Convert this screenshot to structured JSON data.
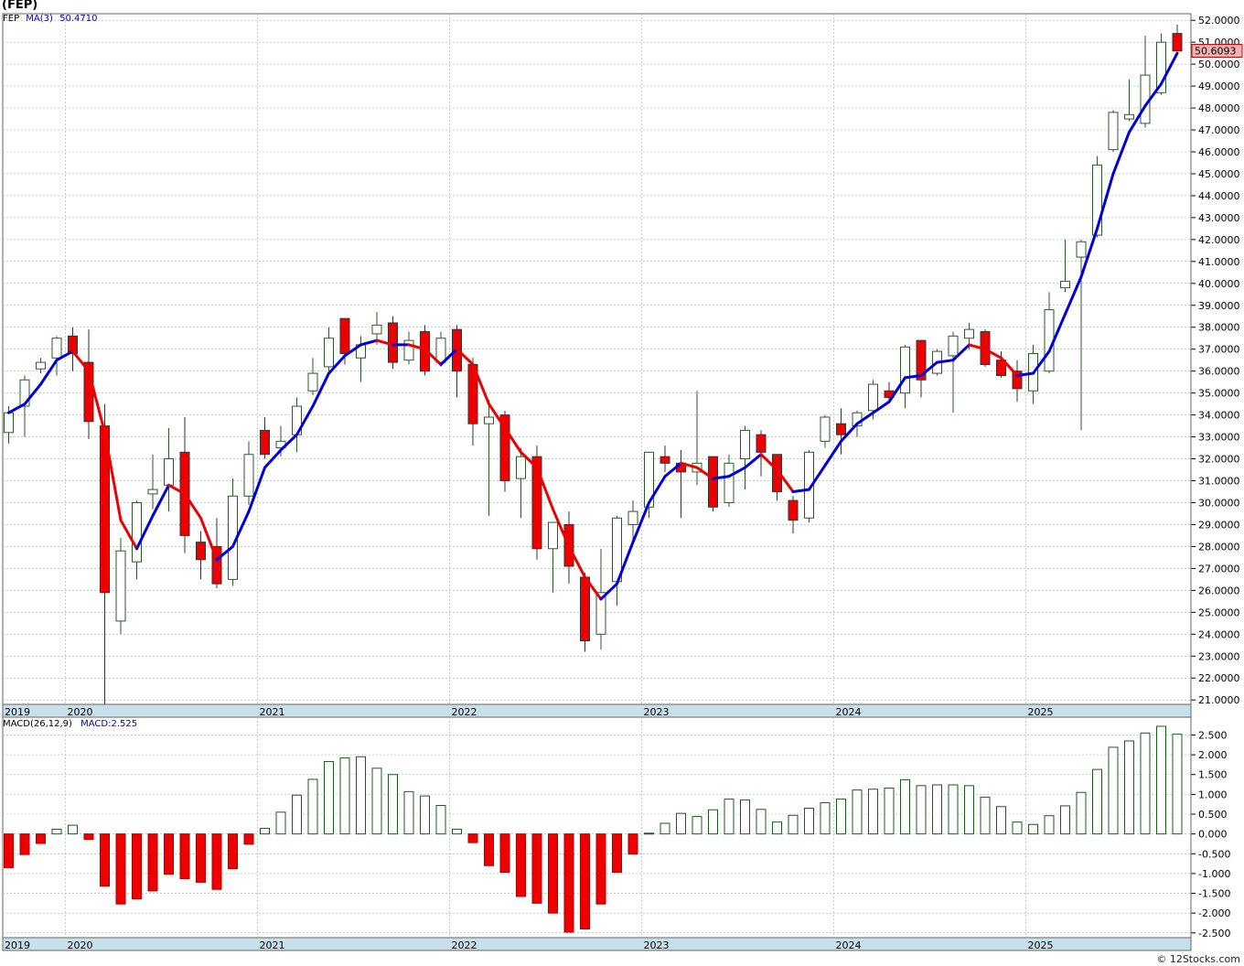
{
  "header": {
    "symbol": "(FEP)",
    "legend_symbol": "FEP",
    "ma_label": "MA(3)",
    "ma_value": "50.4710",
    "macd_params": "MACD(26,12,9)",
    "macd_value": "MACD:2.525",
    "last_price": "50.6093",
    "footer": "© 12Stocks.com"
  },
  "colors": {
    "up": "#ffffff",
    "down": "#ee0000",
    "ma_up": "#0000dd",
    "ma_down": "#ee0000",
    "macd_pos": "#1a5c1a",
    "macd_neg": "#ee0000",
    "axis_band": "#c8e0ea",
    "grid": "#aaaaaa"
  },
  "chart_data": [
    {
      "type": "candlestick",
      "interval": "monthly",
      "xlim": [
        "2019-01",
        "2025-12"
      ],
      "ylim": [
        20.8,
        52.3
      ],
      "y_ticks": [
        "52.0000",
        "51.0000",
        "50.0000",
        "49.0000",
        "48.0000",
        "47.0000",
        "46.0000",
        "45.0000",
        "44.0000",
        "43.0000",
        "42.0000",
        "41.0000",
        "40.0000",
        "39.0000",
        "38.0000",
        "37.0000",
        "36.0000",
        "35.0000",
        "34.0000",
        "33.0000",
        "32.0000",
        "31.0000",
        "30.0000",
        "29.0000",
        "28.0000",
        "27.0000",
        "26.0000",
        "25.0000",
        "24.0000",
        "23.0000",
        "22.0000",
        "21.0000"
      ],
      "x_labels": [
        {
          "label": "2019",
          "month": 0
        },
        {
          "label": "2020",
          "month": 4
        },
        {
          "label": "2021",
          "month": 16
        },
        {
          "label": "2022",
          "month": 28
        },
        {
          "label": "2023",
          "month": 40
        },
        {
          "label": "2024",
          "month": 52
        },
        {
          "label": "2025",
          "month": 64
        }
      ],
      "candles": [
        {
          "o": 33.2,
          "h": 34.4,
          "l": 32.7,
          "c": 34.1
        },
        {
          "o": 34.4,
          "h": 35.8,
          "l": 33.0,
          "c": 35.6
        },
        {
          "o": 36.1,
          "h": 36.6,
          "l": 35.9,
          "c": 36.4
        },
        {
          "o": 36.6,
          "h": 37.6,
          "l": 35.8,
          "c": 37.5
        },
        {
          "o": 37.6,
          "h": 38.0,
          "l": 36.0,
          "c": 36.8
        },
        {
          "o": 36.4,
          "h": 37.9,
          "l": 32.9,
          "c": 33.7
        },
        {
          "o": 33.5,
          "h": 34.5,
          "l": 20.8,
          "c": 25.9
        },
        {
          "o": 24.6,
          "h": 28.4,
          "l": 24.0,
          "c": 27.8
        },
        {
          "o": 27.3,
          "h": 30.1,
          "l": 26.5,
          "c": 30.0
        },
        {
          "o": 30.4,
          "h": 32.2,
          "l": 29.7,
          "c": 30.6
        },
        {
          "o": 30.8,
          "h": 33.4,
          "l": 29.6,
          "c": 32.0
        },
        {
          "o": 32.3,
          "h": 33.9,
          "l": 27.7,
          "c": 28.5
        },
        {
          "o": 28.2,
          "h": 28.7,
          "l": 26.5,
          "c": 27.4
        },
        {
          "o": 28.0,
          "h": 29.3,
          "l": 26.1,
          "c": 26.3
        },
        {
          "o": 26.5,
          "h": 31.1,
          "l": 26.2,
          "c": 30.3
        },
        {
          "o": 30.3,
          "h": 32.8,
          "l": 29.9,
          "c": 32.2
        },
        {
          "o": 33.3,
          "h": 33.9,
          "l": 32.0,
          "c": 32.2
        },
        {
          "o": 32.5,
          "h": 33.5,
          "l": 32.1,
          "c": 32.8
        },
        {
          "o": 33.1,
          "h": 34.8,
          "l": 32.3,
          "c": 34.4
        },
        {
          "o": 35.1,
          "h": 36.6,
          "l": 34.9,
          "c": 35.9
        },
        {
          "o": 36.2,
          "h": 38.0,
          "l": 36.0,
          "c": 37.5
        },
        {
          "o": 38.4,
          "h": 38.4,
          "l": 36.3,
          "c": 36.8
        },
        {
          "o": 36.6,
          "h": 37.6,
          "l": 35.5,
          "c": 37.2
        },
        {
          "o": 37.7,
          "h": 38.7,
          "l": 37.2,
          "c": 38.1
        },
        {
          "o": 38.2,
          "h": 38.5,
          "l": 36.1,
          "c": 36.4
        },
        {
          "o": 36.5,
          "h": 37.8,
          "l": 36.3,
          "c": 37.4
        },
        {
          "o": 37.8,
          "h": 38.1,
          "l": 35.8,
          "c": 36.0
        },
        {
          "o": 36.4,
          "h": 37.8,
          "l": 36.2,
          "c": 37.5
        },
        {
          "o": 37.9,
          "h": 38.1,
          "l": 34.8,
          "c": 36.0
        },
        {
          "o": 36.3,
          "h": 36.6,
          "l": 32.6,
          "c": 33.6
        },
        {
          "o": 33.6,
          "h": 34.7,
          "l": 29.4,
          "c": 33.9
        },
        {
          "o": 34.0,
          "h": 34.2,
          "l": 30.5,
          "c": 31.0
        },
        {
          "o": 31.1,
          "h": 32.5,
          "l": 29.3,
          "c": 32.1
        },
        {
          "o": 32.1,
          "h": 32.6,
          "l": 27.4,
          "c": 27.9
        },
        {
          "o": 27.9,
          "h": 29.1,
          "l": 25.9,
          "c": 29.1
        },
        {
          "o": 29.0,
          "h": 29.6,
          "l": 26.3,
          "c": 27.1
        },
        {
          "o": 26.6,
          "h": 26.8,
          "l": 23.2,
          "c": 23.7
        },
        {
          "o": 24.0,
          "h": 27.9,
          "l": 23.3,
          "c": 25.9
        },
        {
          "o": 26.4,
          "h": 29.4,
          "l": 25.3,
          "c": 29.3
        },
        {
          "o": 29.0,
          "h": 30.1,
          "l": 28.2,
          "c": 29.6
        },
        {
          "o": 29.8,
          "h": 32.1,
          "l": 29.3,
          "c": 32.3
        },
        {
          "o": 32.1,
          "h": 32.6,
          "l": 31.4,
          "c": 31.8
        },
        {
          "o": 31.8,
          "h": 32.4,
          "l": 29.3,
          "c": 31.4
        },
        {
          "o": 31.4,
          "h": 35.1,
          "l": 30.8,
          "c": 31.8
        },
        {
          "o": 32.1,
          "h": 32.1,
          "l": 29.6,
          "c": 29.8
        },
        {
          "o": 30.0,
          "h": 32.2,
          "l": 29.8,
          "c": 31.8
        },
        {
          "o": 32.0,
          "h": 33.5,
          "l": 30.6,
          "c": 33.3
        },
        {
          "o": 33.1,
          "h": 33.3,
          "l": 31.2,
          "c": 32.3
        },
        {
          "o": 32.2,
          "h": 32.2,
          "l": 30.1,
          "c": 30.5
        },
        {
          "o": 30.1,
          "h": 30.3,
          "l": 28.6,
          "c": 29.2
        },
        {
          "o": 29.3,
          "h": 32.4,
          "l": 29.1,
          "c": 32.3
        },
        {
          "o": 32.8,
          "h": 34.0,
          "l": 32.5,
          "c": 33.9
        },
        {
          "o": 33.6,
          "h": 34.3,
          "l": 32.2,
          "c": 33.1
        },
        {
          "o": 33.5,
          "h": 34.2,
          "l": 33.0,
          "c": 34.1
        },
        {
          "o": 34.2,
          "h": 35.6,
          "l": 33.8,
          "c": 35.4
        },
        {
          "o": 35.1,
          "h": 35.5,
          "l": 34.6,
          "c": 34.8
        },
        {
          "o": 35.0,
          "h": 37.2,
          "l": 34.3,
          "c": 37.1
        },
        {
          "o": 37.4,
          "h": 37.4,
          "l": 34.8,
          "c": 35.6
        },
        {
          "o": 35.9,
          "h": 37.0,
          "l": 35.8,
          "c": 36.9
        },
        {
          "o": 36.7,
          "h": 37.8,
          "l": 34.1,
          "c": 37.6
        },
        {
          "o": 37.5,
          "h": 38.2,
          "l": 37.0,
          "c": 37.9
        },
        {
          "o": 37.8,
          "h": 37.9,
          "l": 36.2,
          "c": 36.3
        },
        {
          "o": 36.5,
          "h": 36.9,
          "l": 35.7,
          "c": 35.8
        },
        {
          "o": 36.0,
          "h": 36.5,
          "l": 34.6,
          "c": 35.2
        },
        {
          "o": 35.1,
          "h": 37.2,
          "l": 34.5,
          "c": 36.8
        },
        {
          "o": 36.0,
          "h": 39.6,
          "l": 35.9,
          "c": 38.8
        },
        {
          "o": 39.8,
          "h": 42.0,
          "l": 39.6,
          "c": 40.1
        },
        {
          "o": 41.2,
          "h": 42.0,
          "l": 33.3,
          "c": 41.9
        },
        {
          "o": 42.2,
          "h": 45.8,
          "l": 42.1,
          "c": 45.4
        },
        {
          "o": 46.1,
          "h": 47.9,
          "l": 46.0,
          "c": 47.8
        },
        {
          "o": 47.5,
          "h": 49.3,
          "l": 47.4,
          "c": 47.7
        },
        {
          "o": 47.3,
          "h": 51.3,
          "l": 47.1,
          "c": 49.5
        },
        {
          "o": 48.7,
          "h": 51.4,
          "l": 48.6,
          "c": 51.0
        },
        {
          "o": 51.4,
          "h": 51.8,
          "l": 50.6,
          "c": 50.6
        }
      ],
      "ma3": [
        34.1,
        34.5,
        35.4,
        36.5,
        36.9,
        36.0,
        33.2,
        29.2,
        27.9,
        29.4,
        30.8,
        30.4,
        29.3,
        27.4,
        28.0,
        29.6,
        31.6,
        32.4,
        33.1,
        34.4,
        35.9,
        36.7,
        37.2,
        37.4,
        37.2,
        37.2,
        37.0,
        36.3,
        37.0,
        36.3,
        34.5,
        33.4,
        32.3,
        31.6,
        29.7,
        28.0,
        26.6,
        25.6,
        26.3,
        28.2,
        30.0,
        31.2,
        31.8,
        31.6,
        31.1,
        31.2,
        31.6,
        32.2,
        31.5,
        30.5,
        30.6,
        31.7,
        32.8,
        33.6,
        34.1,
        34.6,
        35.7,
        35.8,
        36.4,
        36.5,
        37.2,
        37.0,
        36.6,
        35.8,
        35.9,
        36.9,
        38.6,
        40.3,
        42.5,
        45.0,
        46.9,
        48.1,
        49.1,
        50.5
      ],
      "x_ticks_visible": [
        "2019",
        "2020",
        "2021",
        "2022",
        "2023",
        "2024",
        "2025"
      ]
    },
    {
      "type": "bar",
      "indicator": "MACD",
      "ylim": [
        -2.62,
        2.95
      ],
      "y_ticks": [
        "2.500",
        "2.000",
        "1.500",
        "1.000",
        "0.500",
        "0.000",
        "-0.500",
        "-1.000",
        "-1.500",
        "-2.000",
        "-2.500"
      ],
      "values": [
        -0.85,
        -0.52,
        -0.24,
        0.12,
        0.22,
        -0.14,
        -1.32,
        -1.77,
        -1.64,
        -1.44,
        -1.02,
        -1.13,
        -1.22,
        -1.4,
        -0.88,
        -0.26,
        0.14,
        0.55,
        0.98,
        1.38,
        1.83,
        1.92,
        1.95,
        1.66,
        1.5,
        1.07,
        0.96,
        0.72,
        0.12,
        -0.22,
        -0.8,
        -0.97,
        -1.58,
        -1.75,
        -2.0,
        -2.48,
        -2.4,
        -1.77,
        -0.97,
        -0.51,
        0.02,
        0.27,
        0.52,
        0.44,
        0.61,
        0.88,
        0.86,
        0.62,
        0.3,
        0.47,
        0.65,
        0.79,
        0.88,
        1.11,
        1.13,
        1.16,
        1.37,
        1.22,
        1.24,
        1.24,
        1.22,
        0.93,
        0.69,
        0.3,
        0.24,
        0.46,
        0.71,
        1.05,
        1.63,
        2.19,
        2.35,
        2.55,
        2.72,
        2.52
      ]
    }
  ]
}
